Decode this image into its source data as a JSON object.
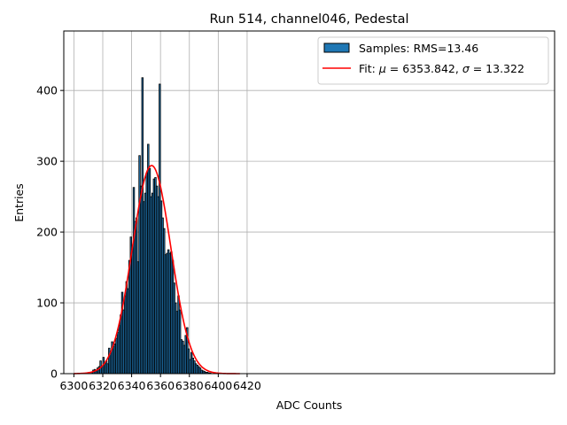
{
  "chart_data": {
    "type": "bar",
    "title": "Run 514, channel046, Pedestal",
    "xlabel": "ADC Counts",
    "ylabel": "Entries",
    "xlim": [
      6293,
      6633
    ],
    "ylim": [
      0,
      484
    ],
    "x_ticks": [
      6300,
      6320,
      6340,
      6360,
      6380,
      6400,
      6420
    ],
    "y_ticks": [
      0,
      100,
      200,
      300,
      400
    ],
    "grid": true,
    "legend_position": "top-right",
    "colors": {
      "bars": "#1f77b4",
      "bar_edge": "#000000",
      "fit": "#ff0000"
    },
    "histogram": {
      "name": "Samples: RMS=13.46",
      "bin_width": 1,
      "bin_starts": [
        6312,
        6313,
        6314,
        6315,
        6316,
        6317,
        6318,
        6319,
        6320,
        6321,
        6322,
        6323,
        6324,
        6325,
        6326,
        6327,
        6328,
        6329,
        6330,
        6331,
        6332,
        6333,
        6334,
        6335,
        6336,
        6337,
        6338,
        6339,
        6340,
        6341,
        6342,
        6343,
        6344,
        6345,
        6346,
        6347,
        6348,
        6349,
        6350,
        6351,
        6352,
        6353,
        6354,
        6355,
        6356,
        6357,
        6358,
        6359,
        6360,
        6361,
        6362,
        6363,
        6364,
        6365,
        6366,
        6367,
        6368,
        6369,
        6370,
        6371,
        6372,
        6373,
        6374,
        6375,
        6376,
        6377,
        6378,
        6379,
        6380,
        6381,
        6382,
        6383,
        6384,
        6385,
        6386,
        6387,
        6388,
        6389,
        6390,
        6391,
        6392,
        6393,
        6394
      ],
      "counts": [
        2,
        5,
        6,
        4,
        8,
        10,
        18,
        10,
        23,
        14,
        18,
        14,
        36,
        30,
        45,
        38,
        42,
        50,
        58,
        68,
        83,
        115,
        90,
        110,
        130,
        120,
        160,
        193,
        176,
        263,
        215,
        220,
        158,
        308,
        265,
        418,
        243,
        255,
        283,
        324,
        290,
        250,
        255,
        275,
        277,
        265,
        250,
        409,
        244,
        220,
        205,
        168,
        170,
        175,
        170,
        172,
        160,
        128,
        100,
        88,
        110,
        90,
        48,
        46,
        40,
        54,
        65,
        35,
        20,
        30,
        22,
        18,
        14,
        12,
        10,
        8,
        5,
        4,
        3,
        2,
        2,
        1,
        1
      ]
    },
    "fit": {
      "name_prefix": "Fit: ",
      "mu_symbol": "μ",
      "mu_value": " = 6353.842, ",
      "sigma_symbol": "σ",
      "sigma_value": " = 13.322",
      "type": "gaussian",
      "mu": 6353.842,
      "sigma": 13.322,
      "amplitude": 294,
      "x_range": [
        6300,
        6415
      ]
    }
  }
}
